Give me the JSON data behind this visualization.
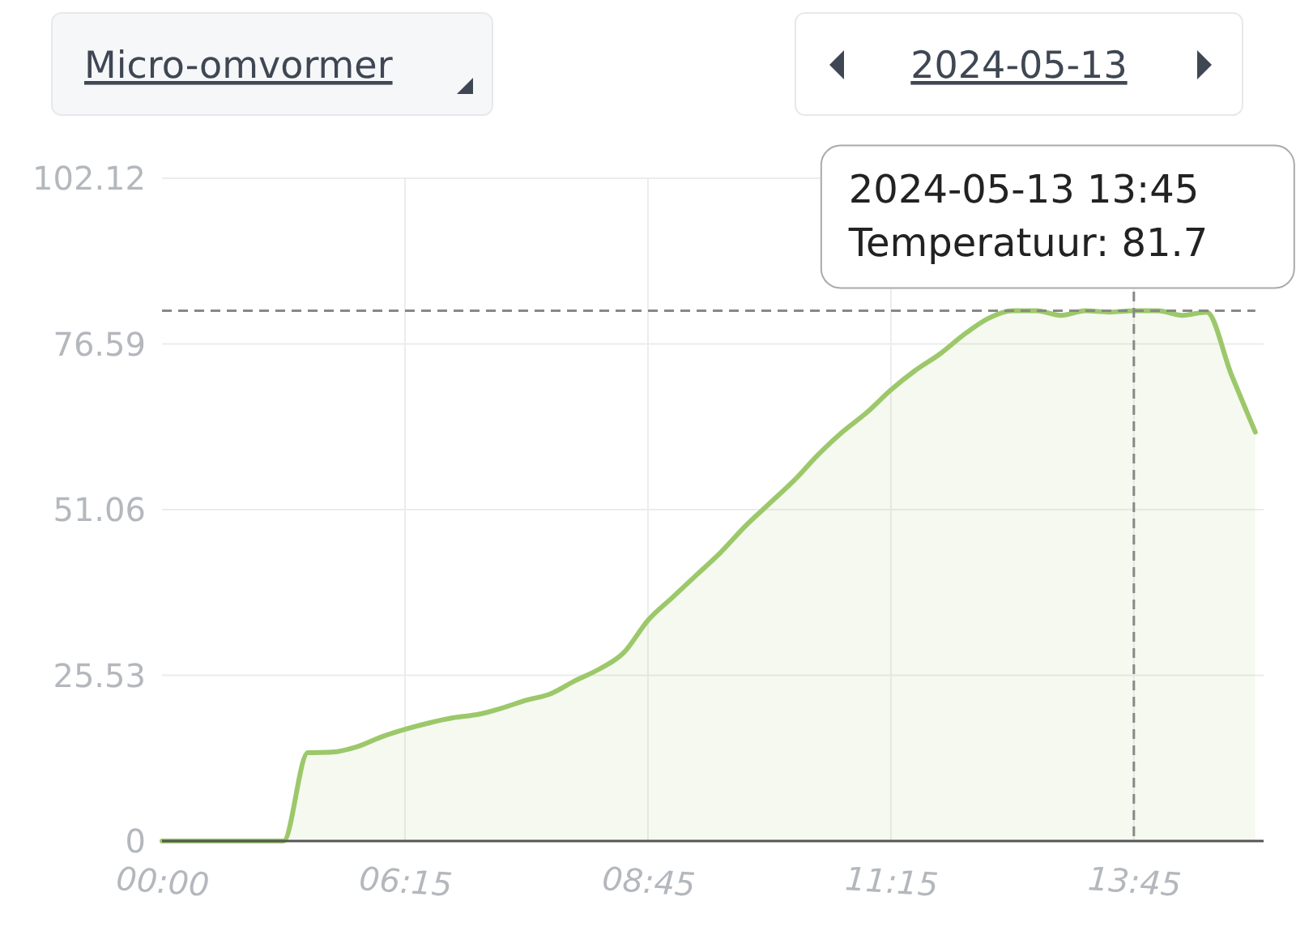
{
  "chart_data": {
    "type": "area",
    "categories": [
      "00:00",
      null,
      null,
      null,
      null,
      null,
      null,
      null,
      null,
      null,
      "06:15",
      null,
      null,
      null,
      null,
      null,
      null,
      null,
      null,
      null,
      "08:45",
      null,
      null,
      null,
      null,
      null,
      null,
      null,
      null,
      null,
      "11:15",
      null,
      null,
      null,
      null,
      null,
      null,
      null,
      null,
      null,
      "13:45",
      null,
      null,
      null,
      null,
      null
    ],
    "series": [
      {
        "color": "#9cc86a",
        "values": [
          0,
          0,
          0,
          0,
          0,
          0,
          13.6,
          13.7,
          14.5,
          16,
          17.2,
          18.2,
          19,
          19.5,
          20.5,
          21.7,
          22.7,
          24.7,
          26.5,
          29,
          34,
          37.5,
          41,
          44.5,
          48.5,
          52,
          55.5,
          59.5,
          63,
          66,
          69.5,
          72.5,
          75,
          78,
          80.5,
          81.7,
          81.7,
          81,
          81.7,
          81.5,
          81.7,
          81.7,
          81,
          81.5,
          72,
          63
        ]
      }
    ],
    "ylim": [
      0,
      102.12
    ],
    "yticks": [
      0,
      25.53,
      51.06,
      76.59,
      102.12
    ],
    "grid": true,
    "ref_lines": [
      {
        "axis": "y",
        "value": 81.7,
        "line_style": "dashed",
        "color": "#888888"
      },
      {
        "axis": "x",
        "value": "13:45",
        "line_style": "dashed",
        "color": "#888888"
      }
    ],
    "annotations": [
      "Micro-omvormer",
      "2024-05-13",
      {
        "text": "2024-05-13 13:45\nTemperatuur: 81.7",
        "x": "13:45",
        "y": 81.7
      }
    ]
  }
}
